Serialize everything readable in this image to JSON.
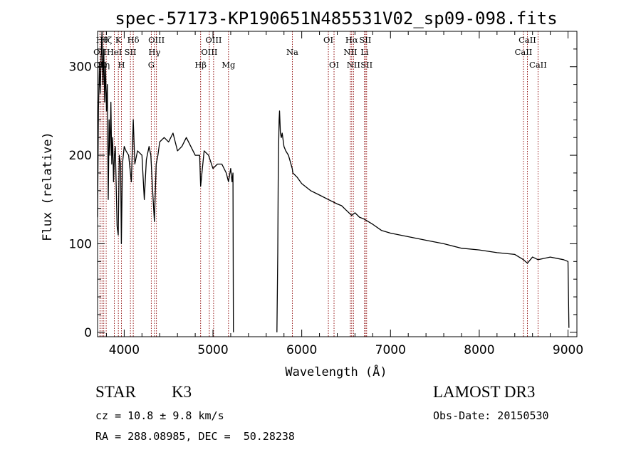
{
  "chart_data": {
    "type": "line",
    "title": "spec-57173-KP190651N485531V02_sp09-098.fits",
    "xlabel": "Wavelength (Å)",
    "ylabel": "Flux (relative)",
    "xlim": [
      3700,
      9100
    ],
    "ylim": [
      -5,
      340
    ],
    "xticks": [
      4000,
      5000,
      6000,
      7000,
      8000,
      9000
    ],
    "xtick_labels": [
      "4000",
      "5000",
      "6000",
      "7000",
      "8000",
      "9000"
    ],
    "yticks": [
      0,
      100,
      200,
      300
    ],
    "ytick_labels": [
      "0",
      "100",
      "200",
      "300"
    ],
    "series": [
      {
        "name": "flux",
        "segments": [
          {
            "x": [
              3700,
              3710,
              3720,
              3730,
              3740,
              3750,
              3760,
              3770,
              3780,
              3790,
              3800,
              3810,
              3820,
              3830,
              3840,
              3850,
              3860,
              3870,
              3880,
              3890,
              3900,
              3920,
              3933,
              3945,
              3960,
              3968,
              3980,
              4000,
              4020,
              4050,
              4080,
              4102,
              4120,
              4150,
              4200,
              4226,
              4250,
              4280,
              4300,
              4320,
              4340,
              4360,
              4380,
              4400,
              4450,
              4500,
              4550,
              4600,
              4650,
              4700,
              4750,
              4800,
              4850,
              4861,
              4900,
              4950,
              5000,
              5050,
              5100,
              5150,
              5175,
              5200,
              5215,
              5225,
              5230
            ],
            "y": [
              130,
              250,
              300,
              270,
              310,
              350,
              280,
              320,
              260,
              300,
              250,
              280,
              150,
              240,
              200,
              260,
              190,
              220,
              170,
              200,
              210,
              120,
              110,
              200,
              190,
              100,
              190,
              210,
              205,
              200,
              170,
              240,
              190,
              205,
              200,
              150,
              195,
              210,
              200,
              160,
              125,
              190,
              200,
              215,
              220,
              215,
              225,
              205,
              210,
              220,
              210,
              200,
              200,
              165,
              205,
              200,
              185,
              190,
              190,
              180,
              170,
              185,
              170,
              180,
              0
            ]
          },
          {
            "x": [
              5720,
              5730,
              5735,
              5740,
              5745,
              5750,
              5760,
              5770,
              5780,
              5800,
              5820,
              5850,
              5893,
              5900,
              5950,
              6000,
              6100,
              6200,
              6300,
              6400,
              6450,
              6500,
              6563,
              6600,
              6650,
              6700,
              6800,
              6900,
              7000,
              7200,
              7400,
              7600,
              7800,
              8000,
              8200,
              8400,
              8498,
              8542,
              8600,
              8662,
              8800,
              8950,
              9000,
              9010
            ],
            "y": [
              0,
              90,
              170,
              210,
              240,
              250,
              225,
              220,
              225,
              210,
              205,
              200,
              185,
              180,
              175,
              168,
              160,
              155,
              150,
              145,
              143,
              138,
              132,
              135,
              130,
              128,
              122,
              115,
              112,
              108,
              104,
              100,
              95,
              93,
              90,
              88,
              82,
              78,
              85,
              82,
              85,
              82,
              80,
              5
            ]
          }
        ]
      }
    ],
    "line_marks": [
      {
        "label": "OII",
        "x": 3727,
        "row": 2
      },
      {
        "label": "OII",
        "x": 3729,
        "row": 3
      },
      {
        "label": "Hθ",
        "x": 3750,
        "row": 1
      },
      {
        "label": "Hη",
        "x": 3770,
        "row": 3
      },
      {
        "label": "Hζ",
        "x": 3797,
        "row": 1
      },
      {
        "label": "HeI",
        "x": 3889,
        "row": 2
      },
      {
        "label": "K",
        "x": 3934,
        "row": 1
      },
      {
        "label": "H",
        "x": 3969,
        "row": 3
      },
      {
        "label": "SII",
        "x": 4070,
        "row": 2
      },
      {
        "label": "Hδ",
        "x": 4102,
        "row": 1
      },
      {
        "label": "G",
        "x": 4305,
        "row": 3
      },
      {
        "label": "Hγ",
        "x": 4341,
        "row": 2
      },
      {
        "label": "OIII",
        "x": 4363,
        "row": 1
      },
      {
        "label": "Hβ",
        "x": 4861,
        "row": 3
      },
      {
        "label": "OIII",
        "x": 4959,
        "row": 2
      },
      {
        "label": "OIII",
        "x": 5007,
        "row": 1
      },
      {
        "label": "Mg",
        "x": 5175,
        "row": 3
      },
      {
        "label": "Na",
        "x": 5894,
        "row": 2
      },
      {
        "label": "OI",
        "x": 6300,
        "row": 1
      },
      {
        "label": "OI",
        "x": 6364,
        "row": 3
      },
      {
        "label": "NII",
        "x": 6548,
        "row": 2
      },
      {
        "label": "Hα",
        "x": 6563,
        "row": 1
      },
      {
        "label": "NII",
        "x": 6583,
        "row": 3
      },
      {
        "label": "Li",
        "x": 6708,
        "row": 2
      },
      {
        "label": "SII",
        "x": 6716,
        "row": 1
      },
      {
        "label": "SII",
        "x": 6731,
        "row": 3
      },
      {
        "label": "CaII",
        "x": 8498,
        "row": 2
      },
      {
        "label": "CaII",
        "x": 8542,
        "row": 1
      },
      {
        "label": "CaII",
        "x": 8662,
        "row": 3
      }
    ],
    "line_color": "#8b0000"
  },
  "info": {
    "object_class": "STAR",
    "subclass": "K3",
    "survey": "LAMOST DR3",
    "redshift": "cz = 10.8 ± 9.8 km/s",
    "obs_date": "Obs-Date: 20150530",
    "coords": "RA = 288.08985, DEC =  50.28238"
  }
}
